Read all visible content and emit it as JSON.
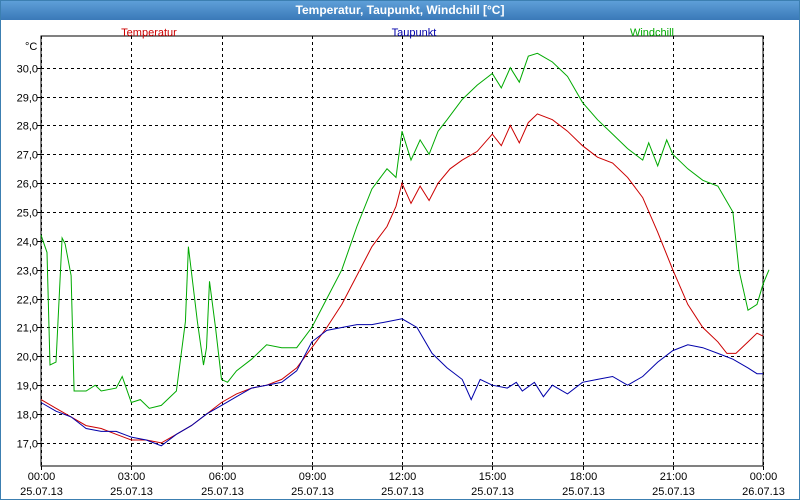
{
  "window": {
    "title": "Temperatur, Taupunkt, Windchill [°C]"
  },
  "chart_data": {
    "type": "line",
    "title": "Temperatur, Taupunkt, Windchill [°C]",
    "ylabel": "°C",
    "xlabel": "",
    "ylim": [
      16.2,
      31.1
    ],
    "xlim": [
      0,
      24
    ],
    "grid": true,
    "legend_placement": "top",
    "y_ticks": [
      "17,0",
      "18,0",
      "19,0",
      "20,0",
      "21,0",
      "22,0",
      "23,0",
      "24,0",
      "25,0",
      "26,0",
      "27,0",
      "28,0",
      "29,0",
      "30,0"
    ],
    "x_ticks": [
      {
        "time": "00:00",
        "date": "25.07.13"
      },
      {
        "time": "03:00",
        "date": "25.07.13"
      },
      {
        "time": "06:00",
        "date": "25.07.13"
      },
      {
        "time": "09:00",
        "date": "25.07.13"
      },
      {
        "time": "12:00",
        "date": "25.07.13"
      },
      {
        "time": "15:00",
        "date": "25.07.13"
      },
      {
        "time": "18:00",
        "date": "25.07.13"
      },
      {
        "time": "21:00",
        "date": "25.07.13"
      },
      {
        "time": "00:00",
        "date": "26.07.13"
      }
    ],
    "series": [
      {
        "name": "Temperatur",
        "color": "#cc0000",
        "points": [
          [
            0,
            18.5
          ],
          [
            0.5,
            18.2
          ],
          [
            1,
            17.9
          ],
          [
            1.5,
            17.6
          ],
          [
            2,
            17.5
          ],
          [
            2.5,
            17.3
          ],
          [
            3,
            17.1
          ],
          [
            3.5,
            17.1
          ],
          [
            4,
            17.0
          ],
          [
            4.5,
            17.3
          ],
          [
            5,
            17.6
          ],
          [
            5.5,
            18.0
          ],
          [
            6,
            18.4
          ],
          [
            6.5,
            18.7
          ],
          [
            7,
            18.9
          ],
          [
            7.5,
            19.0
          ],
          [
            8,
            19.2
          ],
          [
            8.5,
            19.6
          ],
          [
            9,
            20.3
          ],
          [
            9.5,
            21.0
          ],
          [
            10,
            21.8
          ],
          [
            10.5,
            22.8
          ],
          [
            11,
            23.8
          ],
          [
            11.5,
            24.5
          ],
          [
            11.8,
            25.2
          ],
          [
            12,
            26.0
          ],
          [
            12.3,
            25.3
          ],
          [
            12.6,
            25.9
          ],
          [
            12.9,
            25.4
          ],
          [
            13.2,
            26.0
          ],
          [
            13.6,
            26.5
          ],
          [
            14,
            26.8
          ],
          [
            14.5,
            27.1
          ],
          [
            15,
            27.7
          ],
          [
            15.3,
            27.3
          ],
          [
            15.6,
            28.0
          ],
          [
            15.9,
            27.4
          ],
          [
            16.2,
            28.1
          ],
          [
            16.5,
            28.4
          ],
          [
            17,
            28.2
          ],
          [
            17.5,
            27.8
          ],
          [
            18,
            27.3
          ],
          [
            18.5,
            26.9
          ],
          [
            19,
            26.7
          ],
          [
            19.5,
            26.2
          ],
          [
            20,
            25.5
          ],
          [
            20.5,
            24.3
          ],
          [
            21,
            23.0
          ],
          [
            21.5,
            21.8
          ],
          [
            22,
            21.0
          ],
          [
            22.5,
            20.5
          ],
          [
            22.8,
            20.1
          ],
          [
            23.1,
            20.1
          ],
          [
            23.5,
            20.5
          ],
          [
            23.8,
            20.8
          ],
          [
            24,
            20.7
          ]
        ]
      },
      {
        "name": "Taupunkt",
        "color": "#0000aa",
        "points": [
          [
            0,
            18.4
          ],
          [
            0.5,
            18.1
          ],
          [
            1,
            17.9
          ],
          [
            1.5,
            17.5
          ],
          [
            2,
            17.4
          ],
          [
            2.5,
            17.4
          ],
          [
            3,
            17.2
          ],
          [
            3.5,
            17.1
          ],
          [
            4,
            16.9
          ],
          [
            4.5,
            17.3
          ],
          [
            5,
            17.6
          ],
          [
            5.5,
            18.0
          ],
          [
            6,
            18.3
          ],
          [
            6.5,
            18.6
          ],
          [
            7,
            18.9
          ],
          [
            7.5,
            19.0
          ],
          [
            8,
            19.1
          ],
          [
            8.5,
            19.5
          ],
          [
            9,
            20.5
          ],
          [
            9.5,
            20.9
          ],
          [
            10,
            21.0
          ],
          [
            10.5,
            21.1
          ],
          [
            11,
            21.1
          ],
          [
            11.5,
            21.2
          ],
          [
            12,
            21.3
          ],
          [
            12.5,
            21.0
          ],
          [
            13,
            20.1
          ],
          [
            13.5,
            19.6
          ],
          [
            14,
            19.2
          ],
          [
            14.3,
            18.5
          ],
          [
            14.6,
            19.2
          ],
          [
            15,
            19.0
          ],
          [
            15.5,
            18.9
          ],
          [
            15.8,
            19.1
          ],
          [
            16,
            18.8
          ],
          [
            16.4,
            19.1
          ],
          [
            16.7,
            18.6
          ],
          [
            17,
            19.0
          ],
          [
            17.5,
            18.7
          ],
          [
            18,
            19.1
          ],
          [
            18.5,
            19.2
          ],
          [
            19,
            19.3
          ],
          [
            19.5,
            19.0
          ],
          [
            20,
            19.3
          ],
          [
            20.5,
            19.8
          ],
          [
            21,
            20.2
          ],
          [
            21.5,
            20.4
          ],
          [
            22,
            20.3
          ],
          [
            22.5,
            20.1
          ],
          [
            23,
            19.9
          ],
          [
            23.5,
            19.6
          ],
          [
            23.8,
            19.4
          ],
          [
            24,
            19.4
          ]
        ]
      },
      {
        "name": "Windchill",
        "color": "#00aa00",
        "points": [
          [
            0,
            24.2
          ],
          [
            0.2,
            23.6
          ],
          [
            0.3,
            19.7
          ],
          [
            0.5,
            19.8
          ],
          [
            0.7,
            24.1
          ],
          [
            0.8,
            23.9
          ],
          [
            1,
            22.8
          ],
          [
            1.1,
            18.8
          ],
          [
            1.5,
            18.8
          ],
          [
            1.8,
            19.0
          ],
          [
            2,
            18.8
          ],
          [
            2.5,
            18.9
          ],
          [
            2.7,
            19.3
          ],
          [
            3,
            18.4
          ],
          [
            3.3,
            18.5
          ],
          [
            3.6,
            18.2
          ],
          [
            4,
            18.3
          ],
          [
            4.5,
            18.8
          ],
          [
            4.8,
            21.2
          ],
          [
            4.9,
            23.8
          ],
          [
            5.2,
            21.2
          ],
          [
            5.4,
            19.7
          ],
          [
            5.5,
            20.3
          ],
          [
            5.6,
            22.6
          ],
          [
            5.8,
            21.0
          ],
          [
            6,
            19.2
          ],
          [
            6.2,
            19.1
          ],
          [
            6.5,
            19.5
          ],
          [
            7,
            19.9
          ],
          [
            7.5,
            20.4
          ],
          [
            8,
            20.3
          ],
          [
            8.5,
            20.3
          ],
          [
            9,
            21.0
          ],
          [
            9.5,
            22.0
          ],
          [
            10,
            23.0
          ],
          [
            10.5,
            24.5
          ],
          [
            11,
            25.8
          ],
          [
            11.5,
            26.5
          ],
          [
            11.8,
            26.2
          ],
          [
            12,
            27.8
          ],
          [
            12.3,
            26.8
          ],
          [
            12.6,
            27.5
          ],
          [
            12.9,
            27.0
          ],
          [
            13.2,
            27.8
          ],
          [
            13.5,
            28.2
          ],
          [
            14,
            28.9
          ],
          [
            14.5,
            29.4
          ],
          [
            15,
            29.8
          ],
          [
            15.3,
            29.3
          ],
          [
            15.6,
            30.0
          ],
          [
            15.9,
            29.5
          ],
          [
            16.2,
            30.4
          ],
          [
            16.5,
            30.5
          ],
          [
            17,
            30.2
          ],
          [
            17.5,
            29.7
          ],
          [
            18,
            28.8
          ],
          [
            18.5,
            28.2
          ],
          [
            19,
            27.7
          ],
          [
            19.5,
            27.2
          ],
          [
            20,
            26.8
          ],
          [
            20.2,
            27.4
          ],
          [
            20.5,
            26.6
          ],
          [
            20.8,
            27.5
          ],
          [
            21,
            27.0
          ],
          [
            21.5,
            26.5
          ],
          [
            22,
            26.1
          ],
          [
            22.5,
            25.9
          ],
          [
            23,
            25.0
          ],
          [
            23.2,
            23.0
          ],
          [
            23.5,
            21.6
          ],
          [
            23.8,
            21.8
          ],
          [
            24,
            22.5
          ],
          [
            24.2,
            23.0
          ]
        ]
      }
    ]
  }
}
